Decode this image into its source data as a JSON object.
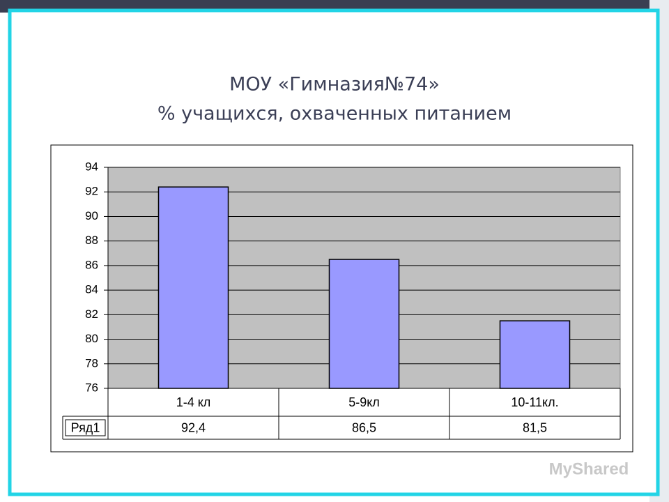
{
  "chart_data": {
    "type": "bar",
    "title": "МОУ «Гимназия№74»",
    "subtitle": "% учащихся, охваченных питанием",
    "categories": [
      "1-4 кл",
      "5-9кл",
      "10-11кл."
    ],
    "series": [
      {
        "name": "Ряд1",
        "color": "#9999ff",
        "values": [
          92.4,
          86.5,
          81.5
        ],
        "value_labels": [
          "92,4",
          "86,5",
          "81,5"
        ]
      }
    ],
    "ylim": [
      76,
      94
    ],
    "yticks": [
      76,
      78,
      80,
      82,
      84,
      86,
      88,
      90,
      92,
      94
    ],
    "grid": true,
    "plot_background": "#c0c0c0",
    "data_table": true,
    "watermark": "MyShared"
  }
}
